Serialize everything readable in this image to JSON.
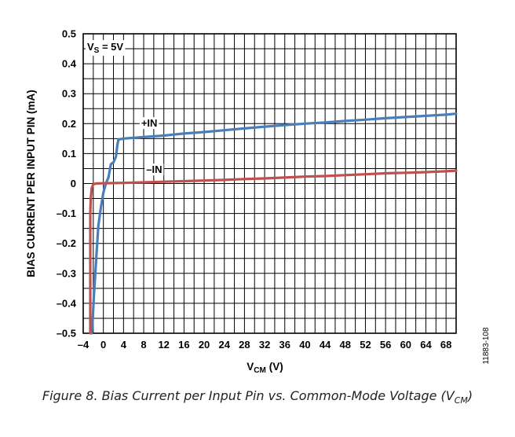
{
  "chart_data": {
    "type": "line",
    "title": "Figure 8. Bias Current per Input Pin vs. Common-Mode Voltage",
    "xlabel": "V",
    "xlabel_sub": "CM",
    "xlabel_unit": "(V)",
    "ylabel": "BIAS CURRENT PER INPUT PIN (mA)",
    "xlim": [
      -4,
      70
    ],
    "ylim": [
      -0.5,
      0.5
    ],
    "xticks": [
      -4,
      0,
      4,
      8,
      12,
      16,
      20,
      24,
      28,
      32,
      36,
      40,
      44,
      48,
      52,
      56,
      60,
      64,
      68
    ],
    "xtick_labels": [
      "–4",
      "0",
      "4",
      "8",
      "12",
      "16",
      "20",
      "24",
      "28",
      "32",
      "36",
      "40",
      "44",
      "48",
      "52",
      "56",
      "60",
      "64",
      "68"
    ],
    "yticks": [
      -0.5,
      -0.4,
      -0.3,
      -0.2,
      -0.1,
      0,
      0.1,
      0.2,
      0.3,
      0.4,
      0.5
    ],
    "ytick_labels": [
      "–0.5",
      "–0.4",
      "–0.3",
      "–0.2",
      "–0.1",
      "0",
      "0.1",
      "0.2",
      "0.3",
      "0.4",
      "0.5"
    ],
    "grid": true,
    "series": [
      {
        "name": "+IN",
        "color": "#4a7ebb",
        "x": [
          -2.3,
          -2.1,
          -1.9,
          -1.6,
          -1.3,
          -1.0,
          -0.5,
          0.0,
          0.5,
          1.0,
          1.5,
          2.0,
          2.5,
          2.8,
          3.0,
          4.0,
          8,
          12,
          16,
          20,
          24,
          28,
          32,
          36,
          40,
          44,
          48,
          52,
          56,
          60,
          64,
          68,
          70
        ],
        "y": [
          -0.5,
          -0.45,
          -0.38,
          -0.3,
          -0.22,
          -0.14,
          -0.08,
          -0.03,
          0.0,
          0.02,
          0.065,
          0.07,
          0.09,
          0.13,
          0.147,
          0.15,
          0.155,
          0.16,
          0.167,
          0.172,
          0.178,
          0.184,
          0.19,
          0.195,
          0.2,
          0.204,
          0.209,
          0.213,
          0.218,
          0.222,
          0.226,
          0.23,
          0.233
        ]
      },
      {
        "name": "–IN",
        "color": "#c0504d",
        "x": [
          -2.6,
          -2.6,
          -2.5,
          -2.3,
          -2.0,
          -1.5,
          0,
          4,
          8,
          12,
          16,
          20,
          24,
          28,
          32,
          36,
          40,
          44,
          48,
          52,
          56,
          60,
          64,
          68,
          70
        ],
        "y": [
          -0.5,
          -0.1,
          -0.05,
          -0.015,
          -0.003,
          0.0,
          0.001,
          0.002,
          0.004,
          0.006,
          0.008,
          0.01,
          0.012,
          0.015,
          0.017,
          0.02,
          0.023,
          0.025,
          0.028,
          0.031,
          0.034,
          0.036,
          0.038,
          0.041,
          0.043
        ]
      }
    ],
    "annotations": [
      {
        "label": "+IN",
        "x": 7.5,
        "y": 0.19
      },
      {
        "label": "–IN",
        "x": 8.5,
        "y": 0.035
      }
    ],
    "condition_label": "V",
    "condition_sub": "S",
    "condition_value": " = 5V",
    "figure_id": "11883-108"
  },
  "caption": {
    "text": "Figure 8. Bias Current per Input Pin vs. Common-Mode Voltage (V",
    "sub": "CM",
    "end": ")"
  }
}
